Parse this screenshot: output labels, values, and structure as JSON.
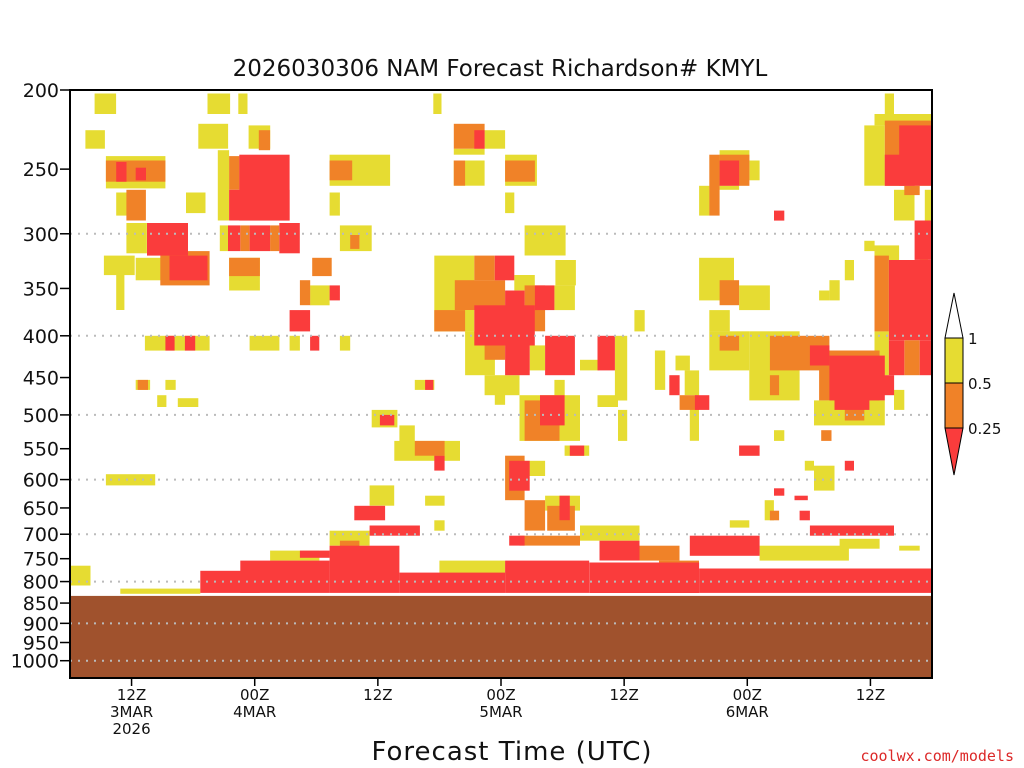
{
  "chart_data": {
    "type": "heatmap",
    "title": "2026030306 NAM Forecast Richardson# KMYL",
    "xlabel": "Forecast Time (UTC)",
    "ylabel": "",
    "x_units": "forecast hour",
    "xlim": [
      0,
      84
    ],
    "ylim": [
      200,
      1050
    ],
    "y_scale": "log",
    "y_reversed": true,
    "y_ticks": [
      200,
      250,
      300,
      350,
      400,
      450,
      500,
      550,
      600,
      650,
      700,
      750,
      800,
      850,
      900,
      950,
      1000
    ],
    "y_gridlines": [
      300,
      400,
      500,
      600,
      700,
      800,
      900,
      1000
    ],
    "x_ticks": [
      {
        "hour": 6,
        "lines": [
          "12Z",
          "3MAR",
          "2026"
        ]
      },
      {
        "hour": 18,
        "lines": [
          "00Z",
          "4MAR"
        ]
      },
      {
        "hour": 30,
        "lines": [
          "12Z"
        ]
      },
      {
        "hour": 42,
        "lines": [
          "00Z",
          "5MAR"
        ]
      },
      {
        "hour": 54,
        "lines": [
          "12Z"
        ]
      },
      {
        "hour": 66,
        "lines": [
          "00Z",
          "6MAR"
        ]
      },
      {
        "hour": 78,
        "lines": [
          "12Z"
        ]
      }
    ],
    "legend": {
      "placement": "right",
      "labels": [
        "1",
        "0.5",
        "0.25"
      ],
      "bins": [
        {
          "range": "> 1",
          "color": "#ffffff"
        },
        {
          "range": "0.5 - 1",
          "color": "#e6dc32"
        },
        {
          "range": "0.25 - 0.5",
          "color": "#f08228"
        },
        {
          "range": "< 0.25",
          "color": "#fa3c3c"
        }
      ]
    },
    "category_colors": [
      "#fa3c3c",
      "#f08228",
      "#e6dc32"
    ],
    "terrain": {
      "surface_pressure_hpa": 833,
      "color": "#a0522d"
    },
    "cell_format": "[hour_start, hour_end, p_top, p_bottom, category(0=<0.25,1=0.25-0.5,2=0.5-1)]",
    "cells": [
      [
        2.4,
        4.5,
        202,
        214,
        2
      ],
      [
        1.5,
        3.4,
        224,
        236,
        2
      ],
      [
        13.4,
        15.6,
        202,
        214,
        2
      ],
      [
        16.4,
        17.3,
        202,
        214,
        2
      ],
      [
        12.5,
        15.4,
        220,
        236,
        2
      ],
      [
        17.4,
        19.5,
        221,
        236,
        2
      ],
      [
        18.4,
        19.5,
        224,
        237,
        1
      ],
      [
        3.5,
        9.3,
        241,
        264,
        2
      ],
      [
        3.5,
        9.3,
        244,
        259,
        1
      ],
      [
        4.5,
        5.5,
        245,
        259,
        0
      ],
      [
        6.4,
        7.4,
        249,
        258,
        0
      ],
      [
        14.4,
        15.5,
        237,
        289,
        2
      ],
      [
        15.5,
        16.5,
        241,
        265,
        1
      ],
      [
        16.5,
        21.4,
        240,
        289,
        0
      ],
      [
        15.5,
        21.4,
        265,
        289,
        0
      ],
      [
        4.5,
        5.5,
        267,
        285,
        2
      ],
      [
        5.5,
        7.4,
        265,
        289,
        1
      ],
      [
        5.5,
        7.5,
        291,
        317,
        2
      ],
      [
        6.4,
        9.3,
        321,
        342,
        2
      ],
      [
        8.8,
        13.6,
        315,
        347,
        1
      ],
      [
        7.5,
        11.5,
        291,
        319,
        0
      ],
      [
        9.7,
        13.4,
        319,
        342,
        0
      ],
      [
        14.6,
        15.4,
        293,
        315,
        2
      ],
      [
        15.4,
        16.6,
        293,
        315,
        0
      ],
      [
        16.6,
        17.5,
        293,
        315,
        1
      ],
      [
        17.5,
        19.5,
        293,
        315,
        0
      ],
      [
        19.5,
        20.4,
        293,
        315,
        1
      ],
      [
        20.4,
        22.4,
        291,
        317,
        0
      ],
      [
        11.3,
        13.2,
        267,
        283,
        2
      ],
      [
        25.3,
        31.2,
        240,
        262,
        2
      ],
      [
        25.3,
        27.5,
        244,
        258,
        1
      ],
      [
        25.3,
        26.3,
        267,
        285,
        2
      ],
      [
        15.5,
        18.5,
        321,
        352,
        2
      ],
      [
        15.5,
        18.5,
        321,
        338,
        1
      ],
      [
        23.6,
        25.5,
        321,
        338,
        1
      ],
      [
        21.4,
        23.4,
        372,
        395,
        0
      ],
      [
        23.4,
        25.3,
        347,
        367,
        2
      ],
      [
        22.4,
        23.4,
        342,
        367,
        1
      ],
      [
        25.3,
        26.3,
        347,
        362,
        0
      ],
      [
        26.3,
        29.4,
        293,
        315,
        2
      ],
      [
        27.3,
        28.2,
        301,
        313,
        1
      ],
      [
        3.3,
        6.3,
        319,
        337,
        2
      ],
      [
        4.5,
        5.3,
        337,
        372,
        2
      ],
      [
        7.3,
        13.6,
        400,
        417,
        2
      ],
      [
        9.3,
        10.2,
        400,
        417,
        0
      ],
      [
        11.2,
        12.2,
        400,
        417,
        0
      ],
      [
        17.5,
        20.4,
        400,
        417,
        2
      ],
      [
        23.4,
        24.3,
        400,
        417,
        0
      ],
      [
        21.4,
        22.4,
        400,
        417,
        2
      ],
      [
        26.3,
        27.3,
        400,
        417,
        2
      ],
      [
        6.4,
        7.8,
        453,
        466,
        2
      ],
      [
        6.6,
        7.6,
        453,
        466,
        1
      ],
      [
        9.3,
        10.3,
        453,
        466,
        2
      ],
      [
        10.5,
        12.5,
        477,
        489,
        2
      ],
      [
        8.5,
        9.4,
        473,
        489,
        2
      ],
      [
        3.5,
        8.3,
        591,
        610,
        2
      ],
      [
        35.4,
        36.2,
        202,
        214,
        2
      ],
      [
        37.4,
        40.4,
        220,
        236,
        1
      ],
      [
        39.4,
        40.4,
        224,
        236,
        0
      ],
      [
        40.4,
        42.4,
        224,
        236,
        2
      ],
      [
        37.4,
        40.4,
        236,
        240,
        2
      ],
      [
        37.4,
        40.4,
        244,
        262,
        2
      ],
      [
        37.4,
        38.5,
        244,
        262,
        1
      ],
      [
        42.4,
        45.5,
        240,
        262,
        2
      ],
      [
        42.4,
        45.3,
        244,
        259,
        1
      ],
      [
        42.4,
        43.3,
        267,
        283,
        2
      ],
      [
        44.3,
        48.3,
        293,
        319,
        2
      ],
      [
        47.3,
        49.3,
        323,
        347,
        2
      ],
      [
        35.5,
        39.4,
        319,
        395,
        2
      ],
      [
        43.3,
        45.3,
        337,
        352,
        2
      ],
      [
        47.2,
        49.2,
        347,
        372,
        2
      ],
      [
        38.5,
        41.4,
        395,
        447,
        2
      ],
      [
        44.8,
        46.3,
        411,
        441,
        2
      ],
      [
        40.4,
        43.8,
        447,
        473,
        2
      ],
      [
        47.2,
        48.2,
        453,
        480,
        2
      ],
      [
        35.5,
        38.5,
        372,
        395,
        1
      ],
      [
        37.5,
        42.4,
        342,
        372,
        1
      ],
      [
        39.4,
        41.4,
        319,
        342,
        1
      ],
      [
        44.3,
        46.3,
        347,
        395,
        1
      ],
      [
        40.4,
        42.4,
        395,
        428,
        1
      ],
      [
        41.4,
        43.3,
        319,
        342,
        0
      ],
      [
        39.4,
        45.3,
        367,
        411,
        0
      ],
      [
        42.4,
        44.3,
        352,
        395,
        0
      ],
      [
        45.3,
        47.2,
        347,
        372,
        0
      ],
      [
        42.4,
        44.8,
        395,
        447,
        0
      ],
      [
        46.3,
        49.2,
        400,
        447,
        0
      ],
      [
        51.4,
        53.1,
        400,
        441,
        0
      ],
      [
        53.1,
        54.3,
        400,
        480,
        2
      ],
      [
        49.7,
        51.6,
        428,
        441,
        2
      ],
      [
        55,
        56,
        372,
        395,
        2
      ],
      [
        57,
        58,
        417,
        466,
        2
      ],
      [
        59,
        60.4,
        423,
        441,
        2
      ],
      [
        43.8,
        49.7,
        473,
        538,
        2
      ],
      [
        44.3,
        47.7,
        480,
        538,
        1
      ],
      [
        45.8,
        48.2,
        473,
        515,
        0
      ],
      [
        48.2,
        50.6,
        545,
        561,
        2
      ],
      [
        48.7,
        50.1,
        545,
        561,
        0
      ],
      [
        43.3,
        46.3,
        569,
        594,
        2
      ],
      [
        42.4,
        44.3,
        561,
        636,
        1
      ],
      [
        42.8,
        44.8,
        569,
        619,
        0
      ],
      [
        46.3,
        49.7,
        628,
        655,
        2
      ],
      [
        44.3,
        46.3,
        636,
        693,
        1
      ],
      [
        46.5,
        49.2,
        646,
        693,
        1
      ],
      [
        47.7,
        48.7,
        628,
        673,
        0
      ],
      [
        32.1,
        33.6,
        515,
        545,
        2
      ],
      [
        31.6,
        38,
        538,
        569,
        2
      ],
      [
        33.6,
        36.5,
        538,
        561,
        1
      ],
      [
        35.5,
        36.5,
        561,
        585,
        0
      ],
      [
        29.4,
        31.9,
        493,
        518,
        2
      ],
      [
        30.2,
        31.6,
        500,
        515,
        0
      ],
      [
        33.6,
        35.5,
        453,
        466,
        2
      ],
      [
        34.6,
        35.4,
        453,
        466,
        0
      ],
      [
        41.4,
        42.4,
        453,
        486,
        2
      ],
      [
        29.2,
        31.6,
        610,
        646,
        2
      ],
      [
        27.7,
        30.7,
        646,
        673,
        0
      ],
      [
        34.6,
        36.5,
        628,
        646,
        2
      ],
      [
        35.5,
        36.5,
        673,
        693,
        2
      ],
      [
        51.4,
        53.4,
        473,
        489,
        2
      ],
      [
        53.4,
        54.3,
        493,
        538,
        2
      ],
      [
        61.3,
        62.3,
        262,
        285,
        2
      ],
      [
        62.3,
        63.3,
        240,
        285,
        1
      ],
      [
        63.3,
        66.2,
        237,
        244,
        2
      ],
      [
        63.3,
        66.2,
        240,
        262,
        1
      ],
      [
        63.3,
        65.2,
        244,
        262,
        0
      ],
      [
        66.2,
        67.2,
        244,
        258,
        2
      ],
      [
        63.3,
        65.2,
        262,
        265,
        2
      ],
      [
        68.6,
        69.6,
        281,
        289,
        0
      ],
      [
        61.3,
        64.7,
        321,
        362,
        2
      ],
      [
        63.3,
        65.2,
        342,
        367,
        1
      ],
      [
        65.2,
        68.2,
        347,
        372,
        2
      ],
      [
        62.3,
        64.3,
        372,
        395,
        2
      ],
      [
        73,
        74,
        352,
        362,
        2
      ],
      [
        74,
        75,
        342,
        362,
        2
      ],
      [
        75.5,
        76.4,
        323,
        342,
        2
      ],
      [
        79.4,
        80.3,
        202,
        214,
        2
      ],
      [
        78.4,
        84,
        214,
        221,
        2
      ],
      [
        77.4,
        79.4,
        221,
        262,
        2
      ],
      [
        80.3,
        82.3,
        265,
        289,
        2
      ],
      [
        83.3,
        84,
        265,
        289,
        2
      ],
      [
        78.4,
        80.8,
        310,
        323,
        2
      ],
      [
        78.4,
        79.8,
        395,
        447,
        2
      ],
      [
        82.8,
        83.6,
        319,
        337,
        2
      ],
      [
        77.4,
        78.4,
        306,
        315,
        2
      ],
      [
        79.4,
        84,
        218,
        262,
        1
      ],
      [
        81.3,
        82.8,
        262,
        269,
        1
      ],
      [
        78.4,
        79.8,
        319,
        395,
        1
      ],
      [
        80.8,
        84,
        221,
        262,
        0
      ],
      [
        79.4,
        82.3,
        240,
        262,
        0
      ],
      [
        82.3,
        84,
        289,
        323,
        0
      ],
      [
        79.8,
        84,
        323,
        405,
        0
      ],
      [
        79.8,
        81.3,
        405,
        447,
        0
      ],
      [
        82.8,
        84,
        405,
        447,
        0
      ],
      [
        81.3,
        82.8,
        405,
        447,
        1
      ],
      [
        62.3,
        66.2,
        395,
        441,
        2
      ],
      [
        66.2,
        71.1,
        395,
        480,
        2
      ],
      [
        72.5,
        79.4,
        480,
        515,
        2
      ],
      [
        59.9,
        61.3,
        441,
        473,
        2
      ],
      [
        60.4,
        61.3,
        486,
        538,
        2
      ],
      [
        67.2,
        68.2,
        441,
        473,
        2
      ],
      [
        80.3,
        81.3,
        466,
        493,
        2
      ],
      [
        63.3,
        65.2,
        400,
        417,
        1
      ],
      [
        68.2,
        74,
        400,
        441,
        1
      ],
      [
        73,
        78.9,
        417,
        480,
        1
      ],
      [
        75.5,
        77.4,
        486,
        508,
        1
      ],
      [
        59.4,
        61.3,
        473,
        493,
        1
      ],
      [
        68.2,
        69.1,
        447,
        473,
        1
      ],
      [
        72.1,
        74,
        411,
        435,
        0
      ],
      [
        74,
        79.4,
        423,
        480,
        0
      ],
      [
        74.5,
        77.9,
        473,
        493,
        0
      ],
      [
        58.4,
        59.4,
        447,
        473,
        0
      ],
      [
        60.9,
        62.3,
        473,
        493,
        0
      ],
      [
        78.9,
        80.3,
        447,
        473,
        0
      ],
      [
        65.2,
        67.2,
        545,
        561,
        0
      ],
      [
        68.6,
        69.6,
        522,
        538,
        2
      ],
      [
        73.2,
        74.2,
        522,
        538,
        1
      ],
      [
        64.3,
        66.2,
        673,
        687,
        2
      ],
      [
        68.6,
        69.6,
        615,
        628,
        0
      ],
      [
        70.6,
        71.9,
        628,
        636,
        0
      ],
      [
        71.1,
        72.1,
        655,
        673,
        0
      ],
      [
        71.6,
        72.5,
        569,
        585,
        2
      ],
      [
        75.5,
        76.4,
        569,
        585,
        0
      ],
      [
        72.5,
        74.5,
        577,
        619,
        2
      ],
      [
        67.7,
        68.6,
        636,
        673,
        2
      ],
      [
        68.2,
        69.1,
        655,
        673,
        1
      ],
      [
        0,
        2,
        765,
        809,
        2
      ],
      [
        4.9,
        12.7,
        816,
        828,
        2
      ],
      [
        19.5,
        24.3,
        733,
        754,
        2
      ],
      [
        36,
        42.4,
        754,
        787,
        2
      ],
      [
        67.2,
        75.9,
        723,
        754,
        2
      ],
      [
        25.3,
        29.2,
        693,
        723,
        2
      ],
      [
        49.7,
        55.5,
        683,
        713,
        2
      ],
      [
        75,
        78.9,
        709,
        729,
        2
      ],
      [
        80.8,
        82.8,
        723,
        733,
        2
      ],
      [
        26.3,
        28.2,
        713,
        729,
        1
      ],
      [
        43.8,
        49.7,
        703,
        723,
        1
      ],
      [
        53.6,
        59.4,
        723,
        754,
        1
      ],
      [
        57.4,
        61.3,
        754,
        776,
        1
      ],
      [
        12.7,
        18.5,
        776,
        826,
        0
      ],
      [
        16.6,
        25.3,
        754,
        826,
        0
      ],
      [
        25.3,
        32.1,
        723,
        826,
        0
      ],
      [
        32.1,
        42.4,
        780,
        826,
        0
      ],
      [
        42.4,
        50.6,
        754,
        826,
        0
      ],
      [
        50.6,
        61.3,
        758,
        826,
        0
      ],
      [
        61.3,
        84,
        771,
        826,
        0
      ],
      [
        29.2,
        34.1,
        683,
        703,
        0
      ],
      [
        42.8,
        44.3,
        703,
        723,
        0
      ],
      [
        51.6,
        55.5,
        713,
        754,
        0
      ],
      [
        72.1,
        80.3,
        683,
        703,
        0
      ],
      [
        60.4,
        67.2,
        703,
        744,
        0
      ],
      [
        22.4,
        25.3,
        733,
        748,
        0
      ]
    ]
  },
  "footer": {
    "credit": "coolwx.com/models"
  }
}
